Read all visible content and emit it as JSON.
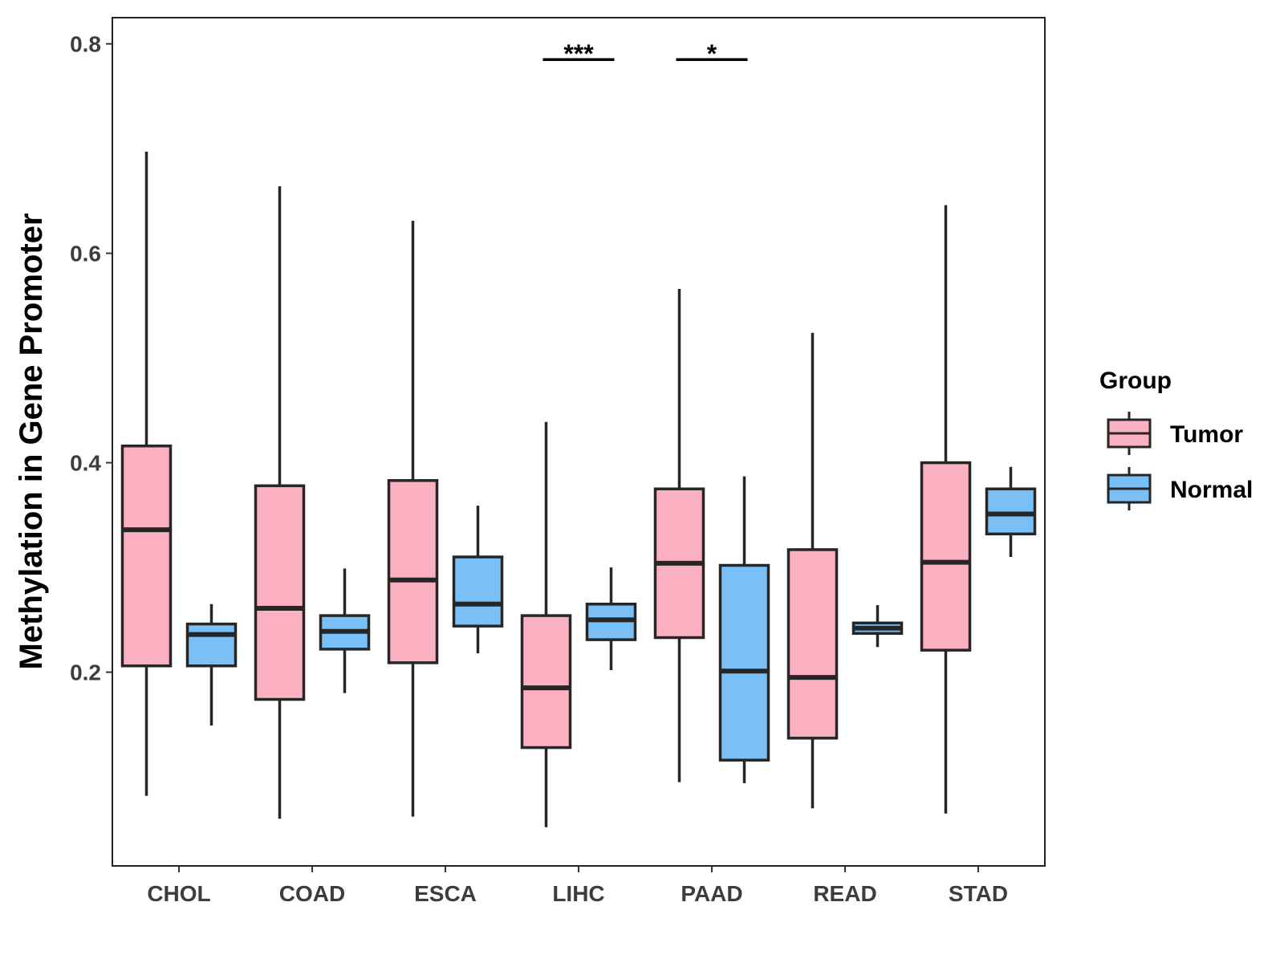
{
  "chart_data": {
    "type": "boxplot",
    "title": "",
    "xlabel": "",
    "ylabel": "Methylation in Gene Promoter",
    "ylim": [
      0.015,
      0.825
    ],
    "yticks": [
      0.2,
      0.4,
      0.6,
      0.8
    ],
    "ytick_labels": [
      "0.2",
      "0.4",
      "0.6",
      "0.8"
    ],
    "categories": [
      "CHOL",
      "COAD",
      "ESCA",
      "LIHC",
      "PAAD",
      "READ",
      "STAD"
    ],
    "legend": {
      "title": "Group",
      "position": "right",
      "entries": [
        {
          "name": "Tumor",
          "color": "#fbb0c1"
        },
        {
          "name": "Normal",
          "color": "#79c0f8"
        }
      ]
    },
    "series": [
      {
        "name": "Tumor",
        "color": "#fbb0c1",
        "boxes": [
          {
            "category": "CHOL",
            "min": 0.082,
            "q1": 0.206,
            "median": 0.336,
            "q3": 0.416,
            "max": 0.697
          },
          {
            "category": "COAD",
            "min": 0.06,
            "q1": 0.174,
            "median": 0.261,
            "q3": 0.378,
            "max": 0.664
          },
          {
            "category": "ESCA",
            "min": 0.062,
            "q1": 0.209,
            "median": 0.288,
            "q3": 0.383,
            "max": 0.631
          },
          {
            "category": "LIHC",
            "min": 0.052,
            "q1": 0.128,
            "median": 0.185,
            "q3": 0.254,
            "max": 0.439
          },
          {
            "category": "PAAD",
            "min": 0.095,
            "q1": 0.233,
            "median": 0.304,
            "q3": 0.375,
            "max": 0.566
          },
          {
            "category": "READ",
            "min": 0.07,
            "q1": 0.137,
            "median": 0.195,
            "q3": 0.317,
            "max": 0.524
          },
          {
            "category": "STAD",
            "min": 0.065,
            "q1": 0.221,
            "median": 0.305,
            "q3": 0.4,
            "max": 0.646
          }
        ]
      },
      {
        "name": "Normal",
        "color": "#79c0f8",
        "boxes": [
          {
            "category": "CHOL",
            "min": 0.149,
            "q1": 0.206,
            "median": 0.236,
            "q3": 0.246,
            "max": 0.265
          },
          {
            "category": "COAD",
            "min": 0.18,
            "q1": 0.222,
            "median": 0.239,
            "q3": 0.254,
            "max": 0.299
          },
          {
            "category": "ESCA",
            "min": 0.218,
            "q1": 0.244,
            "median": 0.265,
            "q3": 0.31,
            "max": 0.359
          },
          {
            "category": "LIHC",
            "min": 0.202,
            "q1": 0.231,
            "median": 0.25,
            "q3": 0.265,
            "max": 0.3
          },
          {
            "category": "PAAD",
            "min": 0.094,
            "q1": 0.116,
            "median": 0.201,
            "q3": 0.302,
            "max": 0.387
          },
          {
            "category": "READ",
            "min": 0.224,
            "q1": 0.237,
            "median": 0.242,
            "q3": 0.247,
            "max": 0.264
          },
          {
            "category": "STAD",
            "min": 0.31,
            "q1": 0.332,
            "median": 0.351,
            "q3": 0.375,
            "max": 0.396
          }
        ]
      }
    ],
    "annotations": [
      {
        "category": "LIHC",
        "label": "***",
        "y": 0.785
      },
      {
        "category": "PAAD",
        "label": "*",
        "y": 0.785
      }
    ],
    "grid": false
  }
}
